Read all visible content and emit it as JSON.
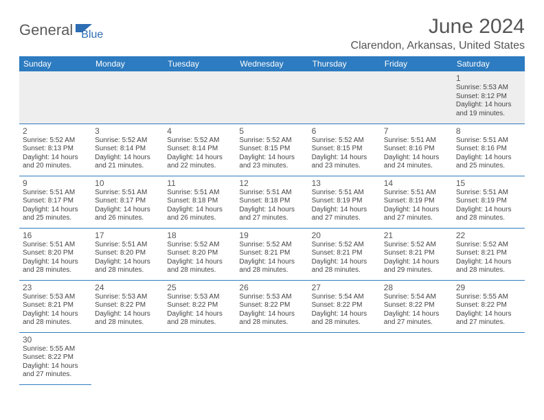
{
  "brand": {
    "part1": "General",
    "part2": "Blue"
  },
  "title": "June 2024",
  "location": "Clarendon, Arkansas, United States",
  "colors": {
    "header_bg": "#2d7bc0",
    "header_text": "#ffffff",
    "border": "#2d7bc0",
    "body_text": "#444",
    "title_text": "#555"
  },
  "dayHeaders": [
    "Sunday",
    "Monday",
    "Tuesday",
    "Wednesday",
    "Thursday",
    "Friday",
    "Saturday"
  ],
  "weeks": [
    [
      null,
      null,
      null,
      null,
      null,
      null,
      {
        "n": "1",
        "sr": "Sunrise: 5:53 AM",
        "ss": "Sunset: 8:12 PM",
        "d1": "Daylight: 14 hours",
        "d2": "and 19 minutes."
      }
    ],
    [
      {
        "n": "2",
        "sr": "Sunrise: 5:52 AM",
        "ss": "Sunset: 8:13 PM",
        "d1": "Daylight: 14 hours",
        "d2": "and 20 minutes."
      },
      {
        "n": "3",
        "sr": "Sunrise: 5:52 AM",
        "ss": "Sunset: 8:14 PM",
        "d1": "Daylight: 14 hours",
        "d2": "and 21 minutes."
      },
      {
        "n": "4",
        "sr": "Sunrise: 5:52 AM",
        "ss": "Sunset: 8:14 PM",
        "d1": "Daylight: 14 hours",
        "d2": "and 22 minutes."
      },
      {
        "n": "5",
        "sr": "Sunrise: 5:52 AM",
        "ss": "Sunset: 8:15 PM",
        "d1": "Daylight: 14 hours",
        "d2": "and 23 minutes."
      },
      {
        "n": "6",
        "sr": "Sunrise: 5:52 AM",
        "ss": "Sunset: 8:15 PM",
        "d1": "Daylight: 14 hours",
        "d2": "and 23 minutes."
      },
      {
        "n": "7",
        "sr": "Sunrise: 5:51 AM",
        "ss": "Sunset: 8:16 PM",
        "d1": "Daylight: 14 hours",
        "d2": "and 24 minutes."
      },
      {
        "n": "8",
        "sr": "Sunrise: 5:51 AM",
        "ss": "Sunset: 8:16 PM",
        "d1": "Daylight: 14 hours",
        "d2": "and 25 minutes."
      }
    ],
    [
      {
        "n": "9",
        "sr": "Sunrise: 5:51 AM",
        "ss": "Sunset: 8:17 PM",
        "d1": "Daylight: 14 hours",
        "d2": "and 25 minutes."
      },
      {
        "n": "10",
        "sr": "Sunrise: 5:51 AM",
        "ss": "Sunset: 8:17 PM",
        "d1": "Daylight: 14 hours",
        "d2": "and 26 minutes."
      },
      {
        "n": "11",
        "sr": "Sunrise: 5:51 AM",
        "ss": "Sunset: 8:18 PM",
        "d1": "Daylight: 14 hours",
        "d2": "and 26 minutes."
      },
      {
        "n": "12",
        "sr": "Sunrise: 5:51 AM",
        "ss": "Sunset: 8:18 PM",
        "d1": "Daylight: 14 hours",
        "d2": "and 27 minutes."
      },
      {
        "n": "13",
        "sr": "Sunrise: 5:51 AM",
        "ss": "Sunset: 8:19 PM",
        "d1": "Daylight: 14 hours",
        "d2": "and 27 minutes."
      },
      {
        "n": "14",
        "sr": "Sunrise: 5:51 AM",
        "ss": "Sunset: 8:19 PM",
        "d1": "Daylight: 14 hours",
        "d2": "and 27 minutes."
      },
      {
        "n": "15",
        "sr": "Sunrise: 5:51 AM",
        "ss": "Sunset: 8:19 PM",
        "d1": "Daylight: 14 hours",
        "d2": "and 28 minutes."
      }
    ],
    [
      {
        "n": "16",
        "sr": "Sunrise: 5:51 AM",
        "ss": "Sunset: 8:20 PM",
        "d1": "Daylight: 14 hours",
        "d2": "and 28 minutes."
      },
      {
        "n": "17",
        "sr": "Sunrise: 5:51 AM",
        "ss": "Sunset: 8:20 PM",
        "d1": "Daylight: 14 hours",
        "d2": "and 28 minutes."
      },
      {
        "n": "18",
        "sr": "Sunrise: 5:52 AM",
        "ss": "Sunset: 8:20 PM",
        "d1": "Daylight: 14 hours",
        "d2": "and 28 minutes."
      },
      {
        "n": "19",
        "sr": "Sunrise: 5:52 AM",
        "ss": "Sunset: 8:21 PM",
        "d1": "Daylight: 14 hours",
        "d2": "and 28 minutes."
      },
      {
        "n": "20",
        "sr": "Sunrise: 5:52 AM",
        "ss": "Sunset: 8:21 PM",
        "d1": "Daylight: 14 hours",
        "d2": "and 28 minutes."
      },
      {
        "n": "21",
        "sr": "Sunrise: 5:52 AM",
        "ss": "Sunset: 8:21 PM",
        "d1": "Daylight: 14 hours",
        "d2": "and 29 minutes."
      },
      {
        "n": "22",
        "sr": "Sunrise: 5:52 AM",
        "ss": "Sunset: 8:21 PM",
        "d1": "Daylight: 14 hours",
        "d2": "and 28 minutes."
      }
    ],
    [
      {
        "n": "23",
        "sr": "Sunrise: 5:53 AM",
        "ss": "Sunset: 8:21 PM",
        "d1": "Daylight: 14 hours",
        "d2": "and 28 minutes."
      },
      {
        "n": "24",
        "sr": "Sunrise: 5:53 AM",
        "ss": "Sunset: 8:22 PM",
        "d1": "Daylight: 14 hours",
        "d2": "and 28 minutes."
      },
      {
        "n": "25",
        "sr": "Sunrise: 5:53 AM",
        "ss": "Sunset: 8:22 PM",
        "d1": "Daylight: 14 hours",
        "d2": "and 28 minutes."
      },
      {
        "n": "26",
        "sr": "Sunrise: 5:53 AM",
        "ss": "Sunset: 8:22 PM",
        "d1": "Daylight: 14 hours",
        "d2": "and 28 minutes."
      },
      {
        "n": "27",
        "sr": "Sunrise: 5:54 AM",
        "ss": "Sunset: 8:22 PM",
        "d1": "Daylight: 14 hours",
        "d2": "and 28 minutes."
      },
      {
        "n": "28",
        "sr": "Sunrise: 5:54 AM",
        "ss": "Sunset: 8:22 PM",
        "d1": "Daylight: 14 hours",
        "d2": "and 27 minutes."
      },
      {
        "n": "29",
        "sr": "Sunrise: 5:55 AM",
        "ss": "Sunset: 8:22 PM",
        "d1": "Daylight: 14 hours",
        "d2": "and 27 minutes."
      }
    ],
    [
      {
        "n": "30",
        "sr": "Sunrise: 5:55 AM",
        "ss": "Sunset: 8:22 PM",
        "d1": "Daylight: 14 hours",
        "d2": "and 27 minutes."
      },
      null,
      null,
      null,
      null,
      null,
      null
    ]
  ]
}
